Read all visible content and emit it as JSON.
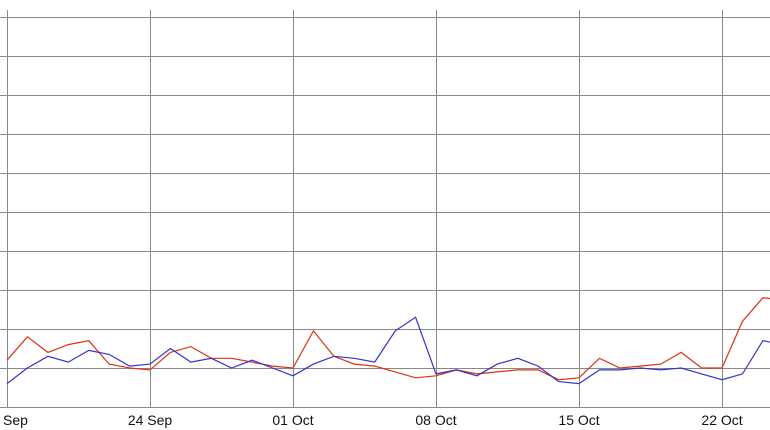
{
  "chart_data": {
    "type": "line",
    "title": "",
    "xlabel": "",
    "ylabel": "",
    "grid": true,
    "x_tick_labels": [
      "Sep",
      "24 Sep",
      "01 Oct",
      "08 Oct",
      "15 Oct",
      "22 Oct"
    ],
    "x_tick_days": [
      17,
      24,
      31,
      38,
      45,
      52
    ],
    "x_domain_days": [
      17,
      55
    ],
    "y_range": [
      0,
      10
    ],
    "y_grid_step": 1,
    "colors": {
      "red_series": "#dd3311",
      "blue_series": "#3333cc",
      "grid": "#888888"
    },
    "series": [
      {
        "color": "#dd3311",
        "x": [
          17,
          18,
          19,
          20,
          21,
          22,
          23,
          24,
          25,
          26,
          27,
          28,
          29,
          30,
          31,
          32,
          33,
          34,
          35,
          36,
          37,
          38,
          39,
          40,
          41,
          42,
          43,
          44,
          45,
          46,
          47,
          48,
          49,
          50,
          51,
          52,
          53,
          54,
          55
        ],
        "values": [
          1.2,
          1.8,
          1.4,
          1.6,
          1.7,
          1.1,
          1.0,
          0.95,
          1.4,
          1.55,
          1.25,
          1.25,
          1.15,
          1.05,
          1.0,
          1.95,
          1.3,
          1.1,
          1.05,
          0.9,
          0.75,
          0.8,
          0.95,
          0.85,
          0.9,
          0.95,
          0.95,
          0.7,
          0.75,
          1.25,
          1.0,
          1.05,
          1.1,
          1.4,
          1.0,
          1.0,
          2.2,
          2.8,
          2.75
        ]
      },
      {
        "color": "#3333cc",
        "x": [
          17,
          18,
          19,
          20,
          21,
          22,
          23,
          24,
          25,
          26,
          27,
          28,
          29,
          30,
          31,
          32,
          33,
          34,
          35,
          36,
          37,
          38,
          39,
          40,
          41,
          42,
          43,
          44,
          45,
          46,
          47,
          48,
          49,
          50,
          51,
          52,
          53,
          54,
          55
        ],
        "values": [
          0.6,
          1.0,
          1.3,
          1.15,
          1.45,
          1.35,
          1.05,
          1.1,
          1.5,
          1.15,
          1.25,
          1.0,
          1.2,
          1.0,
          0.8,
          1.1,
          1.3,
          1.25,
          1.15,
          1.95,
          2.3,
          0.85,
          0.95,
          0.8,
          1.1,
          1.25,
          1.05,
          0.65,
          0.6,
          0.95,
          0.95,
          1.0,
          0.95,
          1.0,
          0.85,
          0.7,
          0.85,
          1.7,
          1.6
        ]
      }
    ]
  }
}
